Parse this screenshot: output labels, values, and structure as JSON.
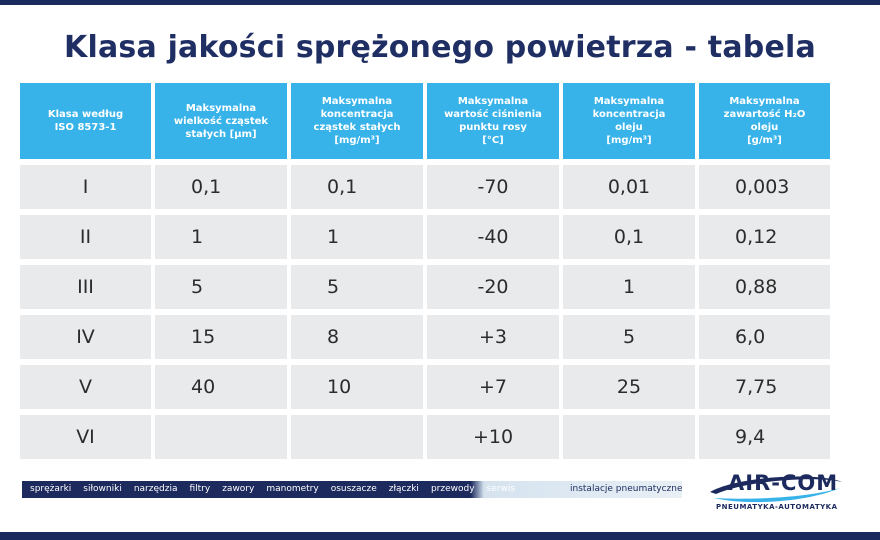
{
  "title": "Klasa jakości sprężonego powietrza - tabela",
  "headers": [
    "Klasa według\nISO 8573-1",
    "Maksymalna\nwielkość cząstek\nstałych [µm]",
    "Maksymalna\nkoncentracja\ncząstek stałych\n[mg/m³]",
    "Maksymalna\nwartość ciśnienia\npunktu rosy\n[°C]",
    "Maksymalna\nkoncentracja\noleju\n[mg/m³]",
    "Maksymalna\nzawartość H₂O\noleju\n[g/m³]"
  ],
  "rows": [
    [
      "I",
      "0,1",
      "0,1",
      "-70",
      "0,01",
      "0,003"
    ],
    [
      "II",
      "1",
      "1",
      "-40",
      "0,1",
      "0,12"
    ],
    [
      "III",
      "5",
      "5",
      "-20",
      "1",
      "0,88"
    ],
    [
      "IV",
      "15",
      "8",
      "+3",
      "5",
      "6,0"
    ],
    [
      "V",
      "40",
      "10",
      "+7",
      "25",
      "7,75"
    ],
    [
      "VI",
      "",
      "",
      "+10",
      "",
      "9,4"
    ]
  ],
  "footer": {
    "links": [
      "sprężarki",
      "siłowniki",
      "narzędzia",
      "filtry",
      "zawory",
      "manometry",
      "osuszacze",
      "złączki",
      "przewody",
      "serwis"
    ],
    "right": "instalacje pneumatyczne"
  },
  "logo": {
    "name": "AIR-COM",
    "tagline": "PNEUMATYKA-AUTOMATYKA"
  }
}
